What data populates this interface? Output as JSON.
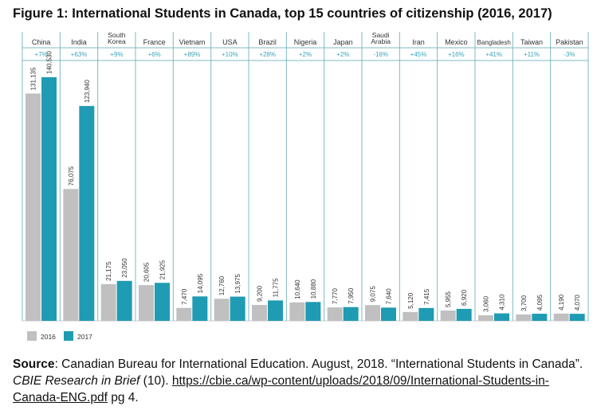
{
  "chart_data": {
    "type": "bar",
    "title": "Figure 1: International Students in Canada, top 15 countries of citizenship (2016, 2017)",
    "categories": [
      [
        "China"
      ],
      [
        "India"
      ],
      [
        "South",
        "Korea"
      ],
      [
        "France"
      ],
      [
        "Vietnam"
      ],
      [
        "USA"
      ],
      [
        "Brazil"
      ],
      [
        "Nigeria"
      ],
      [
        "Japan"
      ],
      [
        "Saudi",
        "Arabia"
      ],
      [
        "Iran"
      ],
      [
        "Mexico"
      ],
      [
        "Bangladesh"
      ],
      [
        "Taiwan"
      ],
      [
        "Pakistan"
      ]
    ],
    "changes": [
      "+7%",
      "+63%",
      "+9%",
      "+6%",
      "+89%",
      "+10%",
      "+28%",
      "+2%",
      "+2%",
      "-16%",
      "+45%",
      "+16%",
      "+41%",
      "+11%",
      "-3%"
    ],
    "series": [
      {
        "name": "2016",
        "color": "#c0c0c0",
        "values": [
          131135,
          76075,
          21175,
          20605,
          7470,
          12760,
          9200,
          10640,
          7770,
          9075,
          5120,
          5955,
          3060,
          3700,
          4190
        ]
      },
      {
        "name": "2017",
        "color": "#1f9bb3",
        "values": [
          140530,
          123940,
          23050,
          21925,
          14095,
          13975,
          11775,
          10880,
          7950,
          7640,
          7415,
          6920,
          4310,
          4095,
          4070
        ]
      }
    ],
    "legend_position": "bottom-left",
    "ylim": [
      0,
      140530
    ]
  },
  "source": {
    "label": "Source",
    "text1": ": Canadian Bureau for International Education. August, 2018. “International Students in Canada”. ",
    "journal": "CBIE Research in Brief",
    "text2": " (10). ",
    "link": "https://cbie.ca/wp-content/uploads/2018/09/International-Students-in-Canada-ENG.pdf",
    "text3": " pg 4."
  }
}
